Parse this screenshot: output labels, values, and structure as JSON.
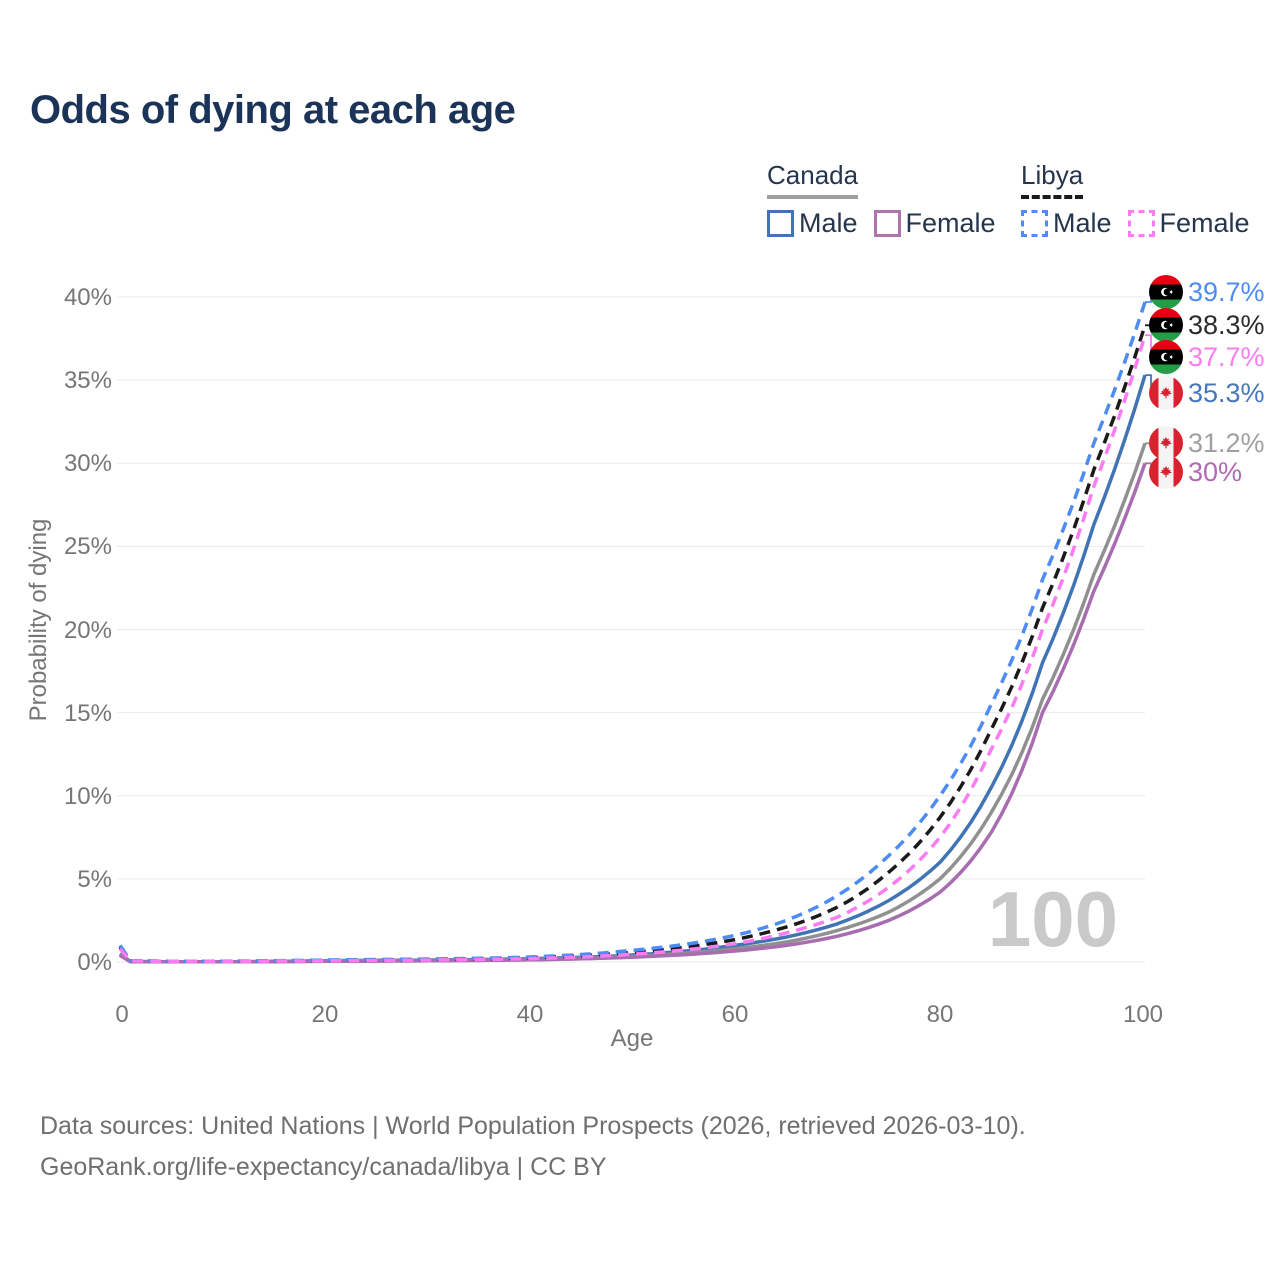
{
  "title": "Odds of dying at each age",
  "watermark": "100",
  "legend": {
    "groups": [
      {
        "label": "Canada",
        "line_color": "#9e9e9e",
        "line_style": "solid",
        "items": [
          {
            "label": "Male",
            "color": "#4174b4",
            "box_style": "solid"
          },
          {
            "label": "Female",
            "color": "#b173ad",
            "box_style": "solid"
          }
        ]
      },
      {
        "label": "Libya",
        "line_color": "#1a1a1a",
        "line_style": "dashed",
        "items": [
          {
            "label": "Male",
            "color": "#4e8bf5",
            "box_style": "dashed"
          },
          {
            "label": "Female",
            "color": "#fb7cf2",
            "box_style": "dashed"
          }
        ]
      }
    ]
  },
  "footer": {
    "line1": "Data sources: United Nations | World Population Prospects (2026, retrieved 2026-03-10).",
    "line2": "GeoRank.org/life-expectancy/canada/libya | CC BY"
  },
  "chart_data": {
    "type": "line",
    "title": "Odds of dying at each age",
    "xlabel": "Age",
    "ylabel": "Probability of dying",
    "xlim": [
      0,
      100
    ],
    "ylim": [
      0,
      42
    ],
    "grid": "horizontal-only",
    "legend_position": "top-right",
    "xticks": [
      0,
      20,
      40,
      60,
      80,
      100
    ],
    "yticks": [
      "0%",
      "5%",
      "10%",
      "15%",
      "20%",
      "25%",
      "30%",
      "35%",
      "40%"
    ],
    "x": [
      0,
      1,
      5,
      10,
      15,
      20,
      25,
      30,
      35,
      40,
      45,
      50,
      55,
      60,
      65,
      70,
      75,
      80,
      85,
      90,
      95,
      100
    ],
    "series": [
      {
        "id": "libya-male",
        "name": "Libya Male",
        "country": "Libya",
        "sex": "Male",
        "color": "#4e8bf5",
        "label_color": "#4e8bf5",
        "dashed": true,
        "end_label": "39.7%",
        "end_value": 39.7,
        "flag": "libya",
        "values": [
          1.0,
          0.08,
          0.05,
          0.05,
          0.08,
          0.12,
          0.15,
          0.18,
          0.22,
          0.3,
          0.45,
          0.7,
          1.05,
          1.6,
          2.5,
          4.0,
          6.4,
          10.0,
          15.5,
          23.0,
          31.2,
          39.7
        ]
      },
      {
        "id": "libya-both",
        "name": "Libya (both sexes)",
        "country": "Libya",
        "sex": "Both",
        "color": "#1a1a1a",
        "label_color": "#2b2b2b",
        "dashed": true,
        "end_label": "38.3%",
        "end_value": 38.3,
        "flag": "libya",
        "values": [
          0.9,
          0.07,
          0.04,
          0.04,
          0.06,
          0.09,
          0.12,
          0.15,
          0.18,
          0.25,
          0.38,
          0.58,
          0.88,
          1.35,
          2.1,
          3.3,
          5.4,
          8.7,
          14.0,
          21.3,
          29.6,
          38.3
        ]
      },
      {
        "id": "libya-female",
        "name": "Libya Female",
        "country": "Libya",
        "sex": "Female",
        "color": "#fb7cf2",
        "label_color": "#fb7cf2",
        "dashed": true,
        "end_label": "37.7%",
        "end_value": 37.7,
        "flag": "libya",
        "values": [
          0.8,
          0.06,
          0.04,
          0.03,
          0.05,
          0.07,
          0.09,
          0.12,
          0.15,
          0.2,
          0.3,
          0.47,
          0.72,
          1.1,
          1.75,
          2.7,
          4.5,
          7.5,
          12.8,
          20.0,
          28.6,
          37.7
        ]
      },
      {
        "id": "canada-male",
        "name": "Canada Male",
        "country": "Canada",
        "sex": "Male",
        "color": "#4174b4",
        "label_color": "#4677b8",
        "dashed": false,
        "end_label": "35.3%",
        "end_value": 35.3,
        "flag": "canada",
        "values": [
          0.5,
          0.03,
          0.01,
          0.01,
          0.04,
          0.08,
          0.1,
          0.12,
          0.15,
          0.2,
          0.28,
          0.42,
          0.65,
          1.0,
          1.5,
          2.3,
          3.7,
          6.0,
          10.5,
          18.0,
          26.3,
          35.3
        ]
      },
      {
        "id": "canada-both",
        "name": "Canada (both sexes)",
        "country": "Canada",
        "sex": "Both",
        "color": "#909090",
        "label_color": "#a0a0a0",
        "dashed": false,
        "end_label": "31.2%",
        "end_value": 31.2,
        "flag": "canada",
        "values": [
          0.45,
          0.03,
          0.01,
          0.01,
          0.03,
          0.06,
          0.08,
          0.1,
          0.12,
          0.16,
          0.23,
          0.35,
          0.53,
          0.8,
          1.2,
          1.9,
          3.0,
          5.0,
          9.0,
          15.8,
          23.3,
          31.2
        ]
      },
      {
        "id": "canada-female",
        "name": "Canada Female",
        "country": "Canada",
        "sex": "Female",
        "color": "#a86cb0",
        "label_color": "#b06ab2",
        "dashed": false,
        "end_label": "30%",
        "end_value": 30.0,
        "flag": "canada",
        "values": [
          0.4,
          0.02,
          0.01,
          0.01,
          0.02,
          0.04,
          0.05,
          0.07,
          0.09,
          0.13,
          0.19,
          0.29,
          0.44,
          0.66,
          1.0,
          1.55,
          2.5,
          4.2,
          7.8,
          15.0,
          22.3,
          30.0
        ]
      }
    ]
  }
}
